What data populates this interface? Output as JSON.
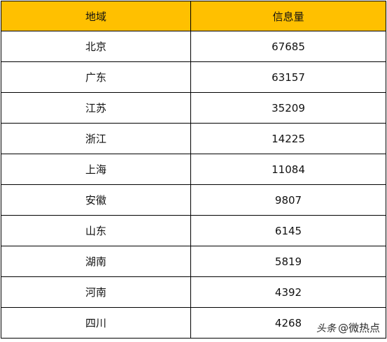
{
  "table": {
    "headers": [
      "地域",
      "信息量"
    ],
    "rows": [
      [
        "北京",
        "67685"
      ],
      [
        "广东",
        "63157"
      ],
      [
        "江苏",
        "35209"
      ],
      [
        "浙江",
        "14225"
      ],
      [
        "上海",
        "11084"
      ],
      [
        "安徽",
        "9807"
      ],
      [
        "山东",
        "6145"
      ],
      [
        "湖南",
        "5819"
      ],
      [
        "河南",
        "4392"
      ],
      [
        "四川",
        "4268"
      ]
    ]
  },
  "watermark": {
    "platform": "头条",
    "account": "@微热点"
  },
  "colors": {
    "header_bg": "#ffc000",
    "border": "#000000"
  }
}
